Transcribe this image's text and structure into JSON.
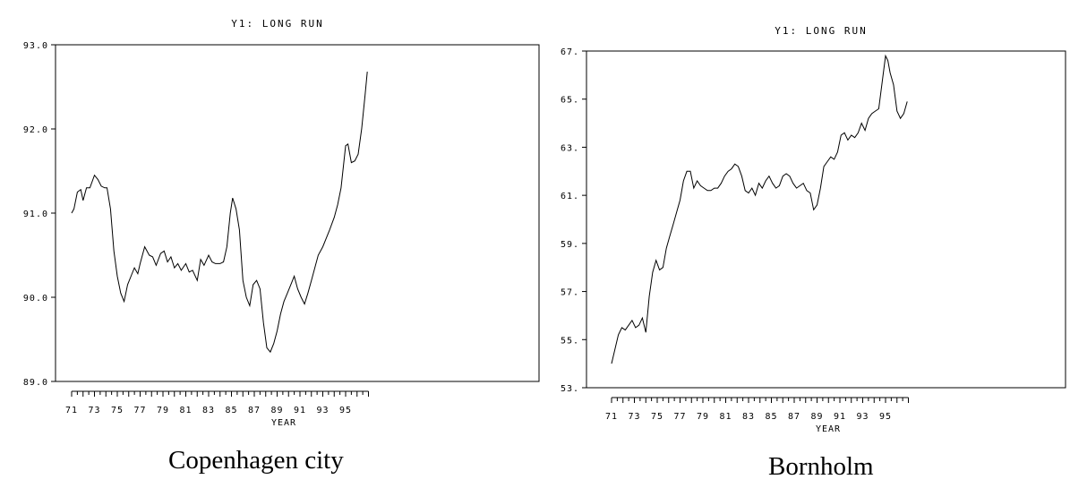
{
  "chart_data": [
    {
      "type": "line",
      "title": "Y1: LONG RUN",
      "xlabel": "YEAR",
      "ylabel": "",
      "caption": "Copenhagen city",
      "xlim": [
        1970.5,
        1997.5
      ],
      "ylim": [
        89.0,
        93.0
      ],
      "xticks": [
        "71",
        "73",
        "75",
        "77",
        "79",
        "81",
        "83",
        "85",
        "87",
        "89",
        "91",
        "93",
        "95"
      ],
      "yticks": [
        "93.0",
        "92.0",
        "91.0",
        "90.0",
        "89.0"
      ],
      "series": [
        {
          "x": [
            1971.0,
            1971.2,
            1971.5,
            1971.8,
            1972.0,
            1972.3,
            1972.6,
            1973.0,
            1973.3,
            1973.6,
            1973.9,
            1974.1,
            1974.4,
            1974.7,
            1975.0,
            1975.3,
            1975.6,
            1975.9,
            1976.2,
            1976.5,
            1976.8,
            1977.0,
            1977.4,
            1977.8,
            1978.1,
            1978.4,
            1978.8,
            1979.1,
            1979.4,
            1979.7,
            1980.0,
            1980.3,
            1980.6,
            1981.0,
            1981.3,
            1981.6,
            1982.0,
            1982.3,
            1982.6,
            1983.0,
            1983.3,
            1983.6,
            1984.0,
            1984.3,
            1984.6,
            1984.9,
            1985.1,
            1985.4,
            1985.7,
            1986.0,
            1986.3,
            1986.6,
            1986.9,
            1987.2,
            1987.5,
            1987.8,
            1988.1,
            1988.4,
            1988.7,
            1989.0,
            1989.3,
            1989.6,
            1989.9,
            1990.2,
            1990.5,
            1990.8,
            1991.1,
            1991.4,
            1991.7,
            1992.0,
            1992.3,
            1992.6,
            1993.0,
            1993.3,
            1993.6,
            1994.0,
            1994.3,
            1994.6,
            1995.0,
            1995.2,
            1995.5,
            1995.8,
            1996.1,
            1996.4,
            1996.7,
            1996.9
          ],
          "y": [
            91.0,
            91.05,
            91.25,
            91.28,
            91.15,
            91.3,
            91.3,
            91.45,
            91.4,
            91.32,
            91.3,
            91.3,
            91.05,
            90.55,
            90.25,
            90.05,
            89.95,
            90.15,
            90.25,
            90.35,
            90.28,
            90.4,
            90.6,
            90.5,
            90.48,
            90.38,
            90.52,
            90.55,
            90.42,
            90.48,
            90.35,
            90.4,
            90.32,
            90.4,
            90.3,
            90.32,
            90.2,
            90.45,
            90.38,
            90.5,
            90.42,
            90.4,
            90.4,
            90.42,
            90.6,
            91.0,
            91.18,
            91.05,
            90.8,
            90.2,
            90.0,
            89.9,
            90.15,
            90.2,
            90.1,
            89.7,
            89.4,
            89.35,
            89.45,
            89.6,
            89.8,
            89.95,
            90.05,
            90.15,
            90.25,
            90.1,
            90.0,
            89.92,
            90.05,
            90.2,
            90.35,
            90.5,
            90.6,
            90.7,
            90.8,
            90.95,
            91.1,
            91.3,
            91.8,
            91.82,
            91.6,
            91.62,
            91.7,
            92.0,
            92.4,
            92.68
          ]
        }
      ]
    },
    {
      "type": "line",
      "title": "Y1: LONG RUN",
      "xlabel": "YEAR",
      "ylabel": "",
      "caption": "Bornholm",
      "xlim": [
        1970.5,
        1997.5
      ],
      "ylim": [
        53.0,
        67.0
      ],
      "xticks": [
        "71",
        "73",
        "75",
        "77",
        "79",
        "81",
        "83",
        "85",
        "87",
        "89",
        "91",
        "93",
        "95"
      ],
      "yticks": [
        "67.",
        "65.",
        "63.",
        "61.",
        "59.",
        "57.",
        "55.",
        "53."
      ],
      "series": [
        {
          "x": [
            1971.0,
            1971.3,
            1971.6,
            1971.9,
            1972.2,
            1972.5,
            1972.8,
            1973.1,
            1973.4,
            1973.7,
            1974.0,
            1974.3,
            1974.6,
            1974.9,
            1975.2,
            1975.5,
            1975.8,
            1976.1,
            1976.4,
            1976.7,
            1977.0,
            1977.3,
            1977.6,
            1977.9,
            1978.2,
            1978.5,
            1978.8,
            1979.1,
            1979.4,
            1979.7,
            1980.0,
            1980.3,
            1980.6,
            1980.9,
            1981.2,
            1981.5,
            1981.8,
            1982.1,
            1982.4,
            1982.7,
            1983.0,
            1983.3,
            1983.6,
            1983.9,
            1984.2,
            1984.5,
            1984.8,
            1985.1,
            1985.4,
            1985.7,
            1986.0,
            1986.3,
            1986.6,
            1986.9,
            1987.2,
            1987.5,
            1987.8,
            1988.1,
            1988.4,
            1988.7,
            1989.0,
            1989.3,
            1989.6,
            1989.9,
            1990.2,
            1990.5,
            1990.8,
            1991.1,
            1991.4,
            1991.7,
            1992.0,
            1992.3,
            1992.6,
            1992.9,
            1993.2,
            1993.5,
            1993.8,
            1994.1,
            1994.4,
            1994.7,
            1995.0,
            1995.2,
            1995.4,
            1995.7,
            1996.0,
            1996.3,
            1996.6,
            1996.9
          ],
          "y": [
            54.0,
            54.6,
            55.2,
            55.5,
            55.4,
            55.6,
            55.8,
            55.5,
            55.6,
            55.9,
            55.3,
            56.8,
            57.8,
            58.3,
            57.9,
            58.0,
            58.8,
            59.3,
            59.8,
            60.3,
            60.8,
            61.6,
            62.0,
            62.0,
            61.3,
            61.6,
            61.4,
            61.3,
            61.2,
            61.2,
            61.3,
            61.3,
            61.5,
            61.8,
            62.0,
            62.1,
            62.3,
            62.2,
            61.8,
            61.2,
            61.1,
            61.3,
            61.0,
            61.5,
            61.3,
            61.6,
            61.8,
            61.5,
            61.3,
            61.4,
            61.8,
            61.9,
            61.8,
            61.5,
            61.3,
            61.4,
            61.5,
            61.2,
            61.1,
            60.4,
            60.6,
            61.3,
            62.2,
            62.4,
            62.6,
            62.5,
            62.8,
            63.5,
            63.6,
            63.3,
            63.5,
            63.4,
            63.6,
            64.0,
            63.7,
            64.2,
            64.4,
            64.5,
            64.6,
            65.7,
            66.8,
            66.6,
            66.1,
            65.6,
            64.5,
            64.2,
            64.4,
            64.9
          ]
        }
      ]
    }
  ]
}
